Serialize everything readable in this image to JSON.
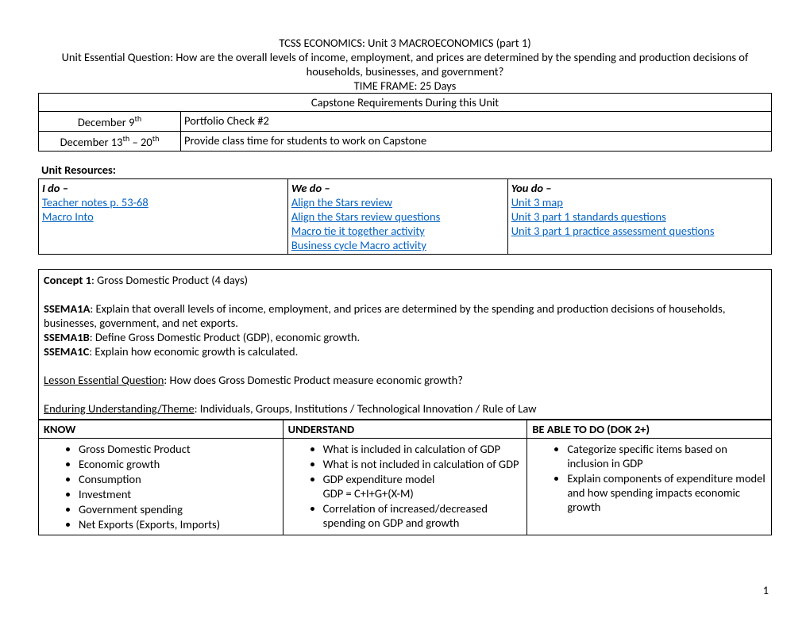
{
  "header": {
    "title": "TCSS ECONOMICS: Unit 3 MACROECONOMICS (part 1)",
    "eq_label": "Unit Essential Question: ",
    "eq_text": "How are the overall levels of income, employment, and prices are determined by the spending and production decisions of households, businesses, and government?",
    "timeframe": "TIME FRAME: 25 Days"
  },
  "capstone": {
    "header": "Capstone Requirements During this Unit",
    "rows": [
      {
        "date_pre": "December 9",
        "date_sup": "th",
        "date_post": "",
        "desc": "Portfolio Check #2"
      },
      {
        "date_pre": "December 13",
        "date_sup": "th",
        "date_post": " – 20",
        "date_sup2": "th",
        "desc": "Provide class time for students to work on Capstone"
      }
    ]
  },
  "resources": {
    "label": "Unit Resources:",
    "cols": [
      {
        "head": "I do –",
        "links": [
          "Teacher notes p. 53-68",
          "Macro Into"
        ]
      },
      {
        "head": "We do –",
        "links": [
          "Align the Stars review",
          "Align the Stars review questions",
          "Macro tie it together activity",
          "Business cycle Macro activity"
        ]
      },
      {
        "head": "You do –",
        "links": [
          "Unit 3 map",
          "Unit 3 part 1 standards questions",
          "Unit 3 part 1 practice assessment questions"
        ]
      }
    ]
  },
  "concept": {
    "title_bold": "Concept 1",
    "title_rest": ": Gross Domestic Product (4 days)",
    "ssema1a_label": "SSEMA1A",
    "ssema1a": ": Explain that overall levels of income, employment, and prices are determined by the spending and production decisions of households, businesses, government, and net exports.",
    "ssema1b_label": "SSEMA1B",
    "ssema1b": ": Define Gross Domestic Product (GDP), economic growth.",
    "ssema1c_label": "SSEMA1C",
    "ssema1c": ": Explain how economic growth is calculated.",
    "leq_label": "Lesson Essential Question",
    "leq": ": How does Gross Domestic Product measure economic growth?",
    "eu_label": "Enduring Understanding/Theme",
    "eu": ": Individuals, Groups, Institutions / Technological Innovation / Rule of Law"
  },
  "kub": {
    "know_h": "KNOW",
    "understand_h": "UNDERSTAND",
    "do_h": "BE ABLE TO DO (DOK 2+)",
    "know": [
      "Gross Domestic Product",
      "Economic growth",
      "Consumption",
      "Investment",
      "Government spending",
      "Net Exports (Exports, Imports)"
    ],
    "understand": [
      "What is included in calculation of GDP",
      "What is not included in calculation of GDP",
      "GDP expenditure model\nGDP = C+I+G+(X-M)",
      "Correlation of increased/decreased spending on GDP and growth"
    ],
    "do": [
      "Categorize specific items based on inclusion in GDP",
      "Explain components of expenditure model and how spending impacts economic growth"
    ]
  },
  "page_num": "1"
}
